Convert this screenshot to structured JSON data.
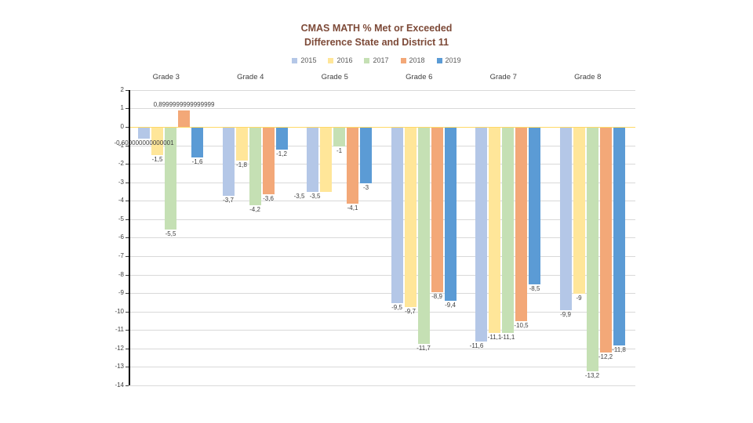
{
  "title": {
    "line1": "CMAS MATH % Met or Exceeded",
    "line2": "Difference State and District 11",
    "color": "#7D4A38"
  },
  "chart_data": {
    "type": "bar",
    "title": "CMAS MATH % Met or Exceeded Difference State and District 11",
    "title_lines": [
      "CMAS MATH % Met or Exceeded",
      "Difference State and District 11"
    ],
    "categories": [
      "Grade 3",
      "Grade 4",
      "Grade 5",
      "Grade 6",
      "Grade 7",
      "Grade 8"
    ],
    "series": [
      {
        "name": "2015",
        "color": "#B4C7E7",
        "values": [
          -0.6,
          -3.7,
          -3.5,
          -9.5,
          -11.6,
          -9.9
        ],
        "labels": [
          "-0,600000000000001",
          "-3,7",
          "-3,5",
          "-9,5",
          "-11,6",
          "-9,9"
        ]
      },
      {
        "name": "2016",
        "color": "#FFE699",
        "values": [
          -1.5,
          -1.8,
          -3.5,
          -9.7,
          -11.1,
          -9
        ],
        "labels": [
          "-1,5",
          "-1,8",
          "-3,5",
          "-9,7",
          "-11,1",
          "-9"
        ]
      },
      {
        "name": "2017",
        "color": "#C5E0B4",
        "values": [
          -5.5,
          -4.2,
          -1,
          -11.7,
          -11.1,
          -13.2
        ],
        "labels": [
          "-5,5",
          "-4,2",
          "-1",
          "-11,7",
          "-11,1",
          "-13,2"
        ]
      },
      {
        "name": "2018",
        "color": "#F3A878",
        "values": [
          0.9,
          -3.6,
          -4.1,
          -8.9,
          -10.5,
          -12.2
        ],
        "labels": [
          "0,8999999999999999",
          "-3,6",
          "-4,1",
          "-8,9",
          "-10,5",
          "-12,2"
        ]
      },
      {
        "name": "2019",
        "color": "#5B9BD5",
        "values": [
          -1.6,
          -1.2,
          -3,
          -9.4,
          -8.5,
          -11.8
        ],
        "labels": [
          "-1,6",
          "-1,2",
          "-3",
          "-9,4",
          "-8,5",
          "-11,8"
        ]
      }
    ],
    "ylim": [
      -14,
      2
    ],
    "ytick_step": 1,
    "grid": true,
    "legend_position": "top",
    "legend_entries": [
      "2015",
      "2016",
      "2017",
      "2018",
      "2019"
    ],
    "gridline_color": "#D9D9D9",
    "zero_line_color": "#FFD966",
    "axis_text_color": "#404040",
    "label_dx": {
      "2-0": -17,
      "2-1": -14,
      "4-0": -6
    }
  }
}
